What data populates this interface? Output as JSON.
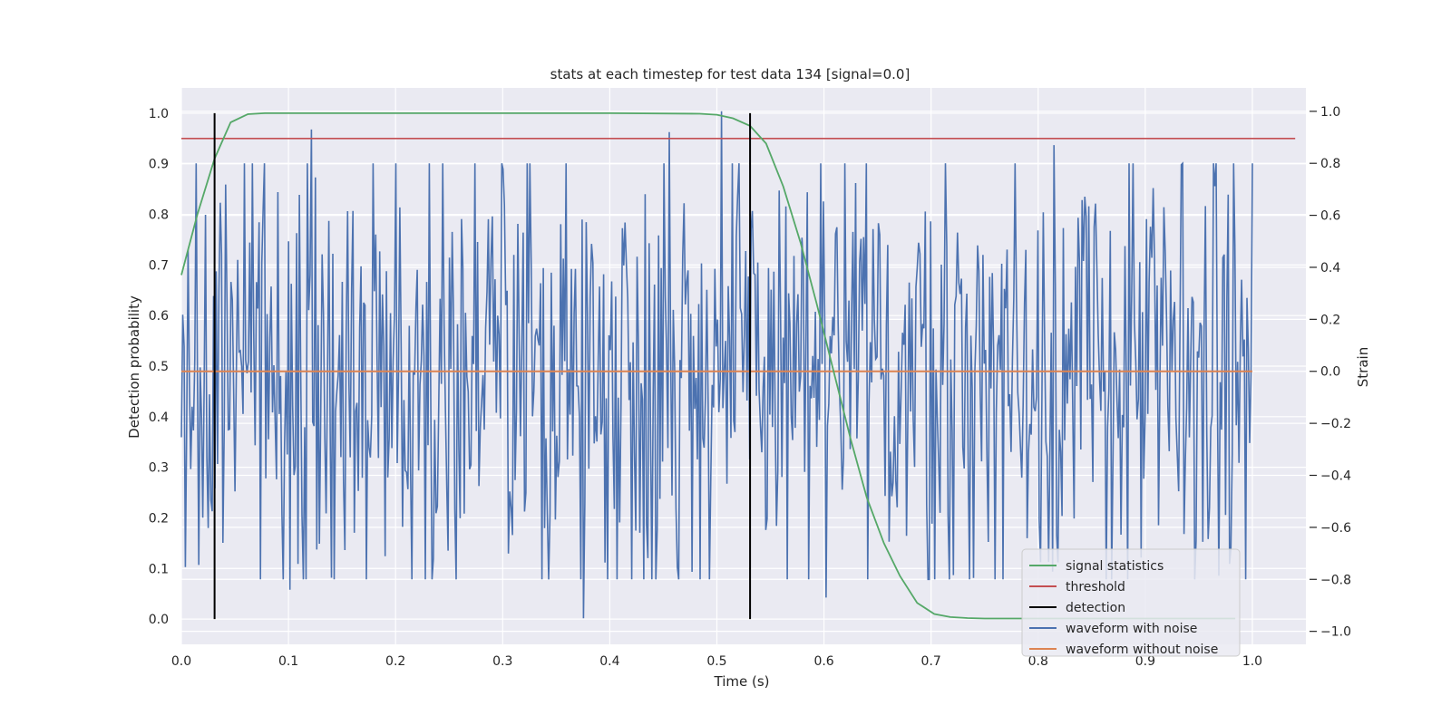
{
  "chart_data": {
    "type": "line",
    "title": "stats at each timestep for test data 134 [signal=0.0]",
    "xlabel": "Time (s)",
    "ylabel_left": "Detection probability",
    "ylabel_right": "Strain",
    "xlim": [
      0.0,
      1.05
    ],
    "ylim_left": [
      -0.05,
      1.05
    ],
    "ylim_right": [
      -1.05,
      1.09
    ],
    "xticks": [
      "0.0",
      "0.1",
      "0.2",
      "0.3",
      "0.4",
      "0.5",
      "0.6",
      "0.7",
      "0.8",
      "0.9",
      "1.0"
    ],
    "yticks_left": [
      "0.0",
      "0.1",
      "0.2",
      "0.3",
      "0.4",
      "0.5",
      "0.6",
      "0.7",
      "0.8",
      "0.9",
      "1.0"
    ],
    "yticks_right": [
      "−1.0",
      "−0.8",
      "−0.6",
      "−0.4",
      "−0.2",
      "0.0",
      "0.2",
      "0.4",
      "0.6",
      "0.8",
      "1.0"
    ],
    "grid": true,
    "legend_position": "lower-right",
    "colors": {
      "plot_bg": "#eaeaf2",
      "grid": "#ffffff",
      "signal_statistics": "#55a868",
      "threshold": "#c44e52",
      "detection": "#000000",
      "waveform_with_noise": "#4c72b0",
      "waveform_without_noise": "#dd8452"
    },
    "legend": [
      {
        "key": "signal_statistics",
        "label": "signal statistics"
      },
      {
        "key": "threshold",
        "label": "threshold"
      },
      {
        "key": "detection",
        "label": "detection"
      },
      {
        "key": "waveform_with_noise",
        "label": "waveform with noise"
      },
      {
        "key": "waveform_without_noise",
        "label": "waveform without noise"
      }
    ],
    "threshold": {
      "value": 0.95,
      "x_range": [
        0.0,
        1.04
      ]
    },
    "detections": [
      {
        "x": 0.031,
        "y_range": [
          0.0,
          1.0
        ]
      },
      {
        "x": 0.531,
        "y_range": [
          0.0,
          1.0
        ]
      }
    ],
    "signal_statistics": {
      "x": [
        0.0,
        0.015,
        0.031,
        0.046,
        0.062,
        0.078,
        0.1,
        0.2,
        0.3,
        0.4,
        0.484,
        0.5,
        0.515,
        0.531,
        0.546,
        0.562,
        0.578,
        0.593,
        0.609,
        0.625,
        0.64,
        0.656,
        0.671,
        0.687,
        0.703,
        0.718,
        0.734,
        0.75,
        0.8,
        0.9,
        0.984
      ],
      "y": [
        0.68,
        0.8,
        0.91,
        0.982,
        0.998,
        1.0,
        1.0,
        1.0,
        1.0,
        1.0,
        0.999,
        0.997,
        0.99,
        0.975,
        0.94,
        0.855,
        0.745,
        0.625,
        0.49,
        0.355,
        0.24,
        0.15,
        0.085,
        0.032,
        0.01,
        0.004,
        0.002,
        0.001,
        0.001,
        0.001,
        0.001
      ]
    },
    "waveform_without_noise": {
      "x": [
        0.0,
        1.0
      ],
      "y": [
        0.0,
        0.0
      ]
    },
    "waveform_with_noise": {
      "x_range": [
        0.0,
        1.0
      ],
      "n_points": 800,
      "y_range_right_axis": [
        -0.95,
        1.0
      ],
      "peaks": [
        {
          "x": 0.121,
          "y": 0.93
        },
        {
          "x": 0.455,
          "y": 0.92
        },
        {
          "x": 0.505,
          "y": 1.0
        },
        {
          "x": 0.375,
          "y": -0.95
        },
        {
          "x": 0.815,
          "y": 0.87
        },
        {
          "x": 0.101,
          "y": -0.84
        },
        {
          "x": 0.602,
          "y": -0.87
        }
      ]
    }
  }
}
